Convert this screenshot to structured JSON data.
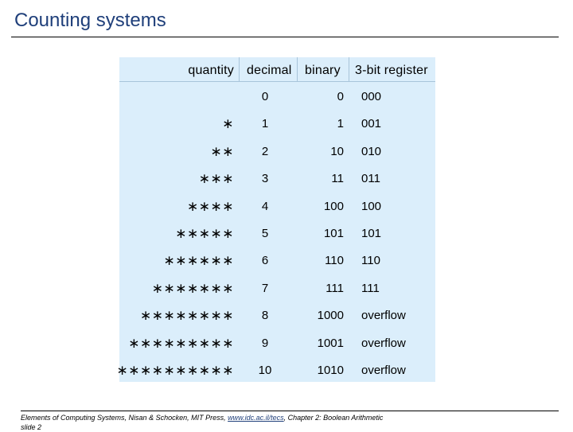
{
  "page": {
    "title": "Counting systems"
  },
  "table": {
    "headers": {
      "quantity": "quantity",
      "decimal": "decimal",
      "binary": "binary",
      "register": "3-bit register"
    },
    "rows": [
      {
        "quantity": "",
        "decimal": "0",
        "binary": "0",
        "register": "000"
      },
      {
        "quantity": "∗",
        "decimal": "1",
        "binary": "1",
        "register": "001"
      },
      {
        "quantity": "∗∗",
        "decimal": "2",
        "binary": "10",
        "register": "010"
      },
      {
        "quantity": "∗∗∗",
        "decimal": "3",
        "binary": "11",
        "register": "011"
      },
      {
        "quantity": "∗∗∗∗",
        "decimal": "4",
        "binary": "100",
        "register": "100"
      },
      {
        "quantity": "∗∗∗∗∗",
        "decimal": "5",
        "binary": "101",
        "register": "101"
      },
      {
        "quantity": "∗∗∗∗∗∗",
        "decimal": "6",
        "binary": "110",
        "register": "110"
      },
      {
        "quantity": "∗∗∗∗∗∗∗",
        "decimal": "7",
        "binary": "111",
        "register": "111"
      },
      {
        "quantity": "∗∗∗∗∗∗∗∗",
        "decimal": "8",
        "binary": "1000",
        "register": "overflow"
      },
      {
        "quantity": "∗∗∗∗∗∗∗∗∗",
        "decimal": "9",
        "binary": "1001",
        "register": "overflow"
      },
      {
        "quantity": "∗∗∗∗∗∗∗∗∗∗",
        "decimal": "10",
        "binary": "1010",
        "register": "overflow"
      }
    ]
  },
  "footer": {
    "prefix": "Elements of Computing Systems, Nisan & Schocken, MIT Press,",
    "link": "www.idc.ac.il/tecs",
    "suffix": ", Chapter 2: Boolean Arithmetic",
    "slide": "slide 2"
  }
}
